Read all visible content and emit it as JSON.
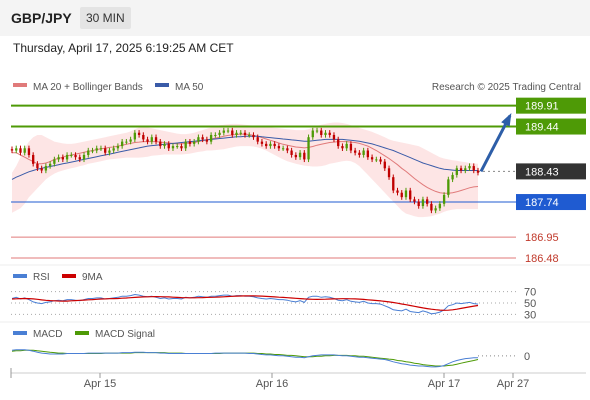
{
  "header": {
    "symbol": "GBP/JPY",
    "timeframe": "30 MIN",
    "datetime": "Thursday, April 17, 2025 6:19:25 AM CET"
  },
  "credit": "Research © 2025 Trading Central",
  "colors": {
    "resistance": "#4e9a06",
    "support": "#1f5bd1",
    "target": "#e07a7a",
    "current": "#333333",
    "arrow": "#2d5ea8",
    "ma20": "#e07a7a",
    "ma50": "#3a5ba8",
    "bollinger_fill": "#fde0e0",
    "up": "#4e9a06",
    "down": "#c00000",
    "rsi": "#4a7fd4",
    "rsi_ma": "#cc0000",
    "macd": "#4a7fd4",
    "macd_signal": "#4e9a06"
  },
  "chart_data": [
    {
      "type": "candlestick",
      "title": "GBP/JPY",
      "legend": [
        "MA 20 + Bollinger Bands",
        "MA 50"
      ],
      "x_ticks": [
        "Apr 15",
        "Apr 16",
        "Apr 17",
        "Apr 27"
      ],
      "ylim": [
        186.3,
        190.15
      ],
      "price_levels": [
        {
          "value": 189.91,
          "label": "189.91",
          "kind": "resistance"
        },
        {
          "value": 189.44,
          "label": "189.44",
          "kind": "resistance"
        },
        {
          "value": 188.43,
          "label": "188.43",
          "kind": "current"
        },
        {
          "value": 187.74,
          "label": "187.74",
          "kind": "support"
        },
        {
          "value": 186.95,
          "label": "186.95",
          "kind": "target"
        },
        {
          "value": 186.48,
          "label": "186.48",
          "kind": "target"
        }
      ],
      "projection": {
        "from": 188.43,
        "to": 189.91,
        "direction": "up"
      },
      "close": [
        188.9,
        188.95,
        188.85,
        188.95,
        188.8,
        188.6,
        188.5,
        188.45,
        188.55,
        188.6,
        188.7,
        188.75,
        188.7,
        188.8,
        188.8,
        188.75,
        188.7,
        188.8,
        188.9,
        188.9,
        188.95,
        188.95,
        188.85,
        188.9,
        188.95,
        189.0,
        189.1,
        189.1,
        189.15,
        189.3,
        189.25,
        189.15,
        189.1,
        189.2,
        189.1,
        189.0,
        189.05,
        188.95,
        189.0,
        189.0,
        188.95,
        189.1,
        189.05,
        189.1,
        189.2,
        189.15,
        189.1,
        189.25,
        189.25,
        189.3,
        189.35,
        189.35,
        189.25,
        189.3,
        189.3,
        189.25,
        189.25,
        189.2,
        189.1,
        189.05,
        189.0,
        189.05,
        189.0,
        188.95,
        188.95,
        188.9,
        188.8,
        188.75,
        188.85,
        188.7,
        189.2,
        189.35,
        189.35,
        189.25,
        189.3,
        189.25,
        189.15,
        189.0,
        188.95,
        189.05,
        188.9,
        188.85,
        188.8,
        188.9,
        188.75,
        188.7,
        188.7,
        188.65,
        188.5,
        188.3,
        188.0,
        187.95,
        187.85,
        188.0,
        187.8,
        187.75,
        187.65,
        187.8,
        187.7,
        187.55,
        187.6,
        187.7,
        187.9,
        188.25,
        188.35,
        188.5,
        188.45,
        188.5,
        188.55,
        188.45,
        188.4
      ],
      "ma20": [
        188.85,
        188.85,
        188.8,
        188.75,
        188.7,
        188.65,
        188.6,
        188.6,
        188.62,
        188.65,
        188.7,
        188.72,
        188.75,
        188.78,
        188.8,
        188.82,
        188.84,
        188.86,
        188.88,
        188.9,
        188.92,
        188.94,
        188.95,
        188.97,
        188.98,
        189.0,
        189.02,
        189.04,
        189.06,
        189.08,
        189.09,
        189.1,
        189.1,
        189.1,
        189.1,
        189.09,
        189.08,
        189.07,
        189.06,
        189.05,
        189.05,
        189.06,
        189.07,
        189.08,
        189.1,
        189.12,
        189.14,
        189.16,
        189.18,
        189.2,
        189.22,
        189.24,
        189.25,
        189.26,
        189.27,
        189.27,
        189.26,
        189.24,
        189.22,
        189.19,
        189.16,
        189.13,
        189.1,
        189.07,
        189.04,
        189.02,
        189.0,
        188.98,
        188.97,
        188.96,
        188.97,
        188.99,
        189.02,
        189.04,
        189.06,
        189.08,
        189.09,
        189.1,
        189.1,
        189.1,
        189.09,
        189.08,
        189.06,
        189.03,
        189.0,
        188.95,
        188.9,
        188.84,
        188.78,
        188.72,
        188.65,
        188.58,
        188.5,
        188.43,
        188.35,
        188.27,
        188.2,
        188.13,
        188.07,
        188.02,
        187.98,
        187.95,
        187.94,
        187.94,
        187.95,
        187.97,
        188.0,
        188.03,
        188.06,
        188.08,
        188.09
      ],
      "bb_upper": [
        188.4,
        188.55,
        188.75,
        188.95,
        189.1,
        189.2,
        189.25,
        189.25,
        189.2,
        189.15,
        189.1,
        189.08,
        189.06,
        189.05,
        189.05,
        189.06,
        189.08,
        189.1,
        189.12,
        189.14,
        189.16,
        189.18,
        189.2,
        189.22,
        189.24,
        189.26,
        189.28,
        189.3,
        189.33,
        189.38,
        189.42,
        189.43,
        189.42,
        189.4,
        189.38,
        189.36,
        189.34,
        189.32,
        189.3,
        189.28,
        189.27,
        189.27,
        189.28,
        189.3,
        189.33,
        189.36,
        189.39,
        189.42,
        189.45,
        189.47,
        189.48,
        189.49,
        189.5,
        189.5,
        189.49,
        189.48,
        189.47,
        189.46,
        189.45,
        189.44,
        189.43,
        189.42,
        189.41,
        189.4,
        189.39,
        189.38,
        189.37,
        189.36,
        189.36,
        189.36,
        189.38,
        189.42,
        189.46,
        189.48,
        189.5,
        189.52,
        189.53,
        189.53,
        189.52,
        189.5,
        189.47,
        189.44,
        189.41,
        189.38,
        189.35,
        189.32,
        189.28,
        189.24,
        189.2,
        189.15,
        189.12,
        189.1,
        189.08,
        189.06,
        189.04,
        189.02,
        189.0,
        188.95,
        188.9,
        188.85,
        188.8,
        188.75,
        188.72,
        188.7,
        188.68,
        188.67,
        188.65,
        188.64,
        188.62,
        188.61,
        188.6
      ],
      "bb_lower": [
        187.5,
        187.55,
        187.6,
        187.7,
        187.85,
        187.95,
        188.05,
        188.15,
        188.25,
        188.32,
        188.38,
        188.42,
        188.45,
        188.48,
        188.5,
        188.52,
        188.55,
        188.57,
        188.6,
        188.62,
        188.64,
        188.66,
        188.68,
        188.7,
        188.71,
        188.72,
        188.73,
        188.74,
        188.74,
        188.74,
        188.74,
        188.75,
        188.76,
        188.78,
        188.79,
        188.8,
        188.81,
        188.81,
        188.81,
        188.81,
        188.81,
        188.82,
        188.83,
        188.85,
        188.87,
        188.88,
        188.9,
        188.9,
        188.91,
        188.92,
        188.93,
        188.95,
        188.97,
        188.99,
        189.0,
        189.0,
        189.0,
        188.99,
        188.97,
        188.94,
        188.9,
        188.85,
        188.8,
        188.75,
        188.7,
        188.66,
        188.63,
        188.6,
        188.58,
        188.56,
        188.55,
        188.54,
        188.54,
        188.55,
        188.57,
        188.6,
        188.62,
        188.64,
        188.66,
        188.67,
        188.66,
        188.62,
        188.55,
        188.45,
        188.35,
        188.25,
        188.15,
        188.05,
        187.95,
        187.85,
        187.75,
        187.65,
        187.55,
        187.48,
        187.45,
        187.42,
        187.4,
        187.4,
        187.41,
        187.42,
        187.45,
        187.48,
        187.52,
        187.55,
        187.57,
        187.58,
        187.58,
        187.58,
        187.58,
        187.58,
        187.58
      ],
      "ma50": [
        188.25,
        188.3,
        188.34,
        188.38,
        188.42,
        188.45,
        188.48,
        188.5,
        188.52,
        188.54,
        188.56,
        188.58,
        188.6,
        188.62,
        188.64,
        188.66,
        188.68,
        188.7,
        188.72,
        188.74,
        188.76,
        188.78,
        188.8,
        188.82,
        188.84,
        188.86,
        188.88,
        188.9,
        188.92,
        188.94,
        188.96,
        188.98,
        189.0,
        189.01,
        189.02,
        189.03,
        189.04,
        189.05,
        189.06,
        189.07,
        189.08,
        189.09,
        189.1,
        189.11,
        189.12,
        189.13,
        189.14,
        189.15,
        189.16,
        189.17,
        189.18,
        189.19,
        189.2,
        189.21,
        189.21,
        189.22,
        189.22,
        189.22,
        189.22,
        189.21,
        189.2,
        189.19,
        189.18,
        189.17,
        189.16,
        189.15,
        189.14,
        189.13,
        189.12,
        189.11,
        189.11,
        189.12,
        189.13,
        189.14,
        189.15,
        189.15,
        189.15,
        189.15,
        189.15,
        189.14,
        189.13,
        189.12,
        189.11,
        189.09,
        189.07,
        189.05,
        189.02,
        188.99,
        188.96,
        188.93,
        188.9,
        188.86,
        188.82,
        188.78,
        188.74,
        188.7,
        188.66,
        188.62,
        188.59,
        188.56,
        188.53,
        188.5,
        188.48,
        188.47,
        188.46,
        188.45,
        188.45,
        188.45,
        188.45,
        188.45,
        188.45
      ]
    },
    {
      "type": "line",
      "title": "RSI",
      "legend": [
        "RSI",
        "9MA"
      ],
      "y_ticks": [
        "70",
        "50",
        "30"
      ],
      "ylim": [
        20,
        80
      ],
      "series": [
        {
          "name": "RSI",
          "values": [
            58,
            60,
            57,
            59,
            56,
            52,
            50,
            49,
            51,
            52,
            54,
            55,
            54,
            56,
            56,
            55,
            54,
            56,
            58,
            58,
            59,
            59,
            57,
            58,
            59,
            60,
            62,
            62,
            63,
            65,
            64,
            62,
            61,
            62,
            60,
            58,
            59,
            57,
            58,
            58,
            57,
            60,
            59,
            60,
            62,
            61,
            60,
            62,
            62,
            63,
            64,
            64,
            62,
            63,
            63,
            62,
            62,
            61,
            59,
            58,
            57,
            58,
            57,
            56,
            56,
            55,
            53,
            52,
            54,
            51,
            60,
            62,
            62,
            60,
            61,
            60,
            58,
            55,
            54,
            56,
            53,
            52,
            51,
            53,
            50,
            49,
            49,
            48,
            45,
            42,
            38,
            37,
            36,
            39,
            35,
            34,
            33,
            36,
            34,
            31,
            32,
            34,
            38,
            45,
            47,
            50,
            49,
            50,
            51,
            49,
            48
          ]
        },
        {
          "name": "9MA",
          "values": [
            57,
            57.5,
            57.8,
            58,
            57.8,
            57.2,
            56.5,
            55.5,
            54.8,
            54.2,
            53.8,
            53.5,
            53.3,
            53.4,
            53.8,
            54.3,
            54.8,
            55.2,
            55.6,
            56,
            56.5,
            57,
            57.3,
            57.6,
            57.8,
            58,
            58.4,
            58.8,
            59.3,
            59.9,
            60.4,
            60.8,
            61,
            61.2,
            61.3,
            61.2,
            61,
            60.7,
            60.3,
            59.9,
            59.5,
            59.3,
            59.2,
            59.2,
            59.4,
            59.6,
            59.8,
            60,
            60.3,
            60.6,
            61,
            61.4,
            61.8,
            62.1,
            62.4,
            62.6,
            62.7,
            62.6,
            62.4,
            62.1,
            61.7,
            61.3,
            60.8,
            60.3,
            59.8,
            59.3,
            58.8,
            58.3,
            57.8,
            57.2,
            56.8,
            56.5,
            56.4,
            56.5,
            56.7,
            57,
            57.3,
            57.5,
            57.6,
            57.6,
            57.5,
            57.2,
            56.8,
            56.3,
            55.7,
            55.1,
            54.4,
            53.7,
            52.9,
            51.9,
            50.8,
            49.6,
            48.3,
            47,
            45.6,
            44.2,
            42.8,
            41.4,
            40.2,
            39.1,
            38.2,
            37.5,
            37.1,
            37.3,
            38,
            39.1,
            40.4,
            41.8,
            43.2,
            44.5,
            45.6
          ]
        }
      ]
    },
    {
      "type": "line",
      "title": "MACD",
      "legend": [
        "MACD",
        "MACD Signal"
      ],
      "y_ticks": [
        "0"
      ],
      "ylim": [
        -0.35,
        0.3
      ],
      "series": [
        {
          "name": "MACD",
          "values": [
            0.12,
            0.13,
            0.13,
            0.13,
            0.12,
            0.1,
            0.08,
            0.06,
            0.05,
            0.04,
            0.04,
            0.04,
            0.04,
            0.05,
            0.05,
            0.05,
            0.05,
            0.05,
            0.06,
            0.06,
            0.06,
            0.06,
            0.06,
            0.06,
            0.06,
            0.06,
            0.07,
            0.07,
            0.07,
            0.08,
            0.08,
            0.08,
            0.07,
            0.07,
            0.07,
            0.06,
            0.06,
            0.05,
            0.05,
            0.05,
            0.05,
            0.05,
            0.05,
            0.05,
            0.05,
            0.05,
            0.05,
            0.05,
            0.06,
            0.06,
            0.06,
            0.06,
            0.06,
            0.06,
            0.06,
            0.06,
            0.05,
            0.05,
            0.04,
            0.03,
            0.02,
            0.02,
            0.01,
            0.0,
            0.0,
            -0.01,
            -0.02,
            -0.03,
            -0.03,
            -0.04,
            -0.02,
            0.0,
            0.01,
            0.02,
            0.02,
            0.02,
            0.02,
            0.01,
            0.0,
            0.0,
            -0.01,
            -0.02,
            -0.03,
            -0.03,
            -0.04,
            -0.05,
            -0.06,
            -0.07,
            -0.08,
            -0.1,
            -0.13,
            -0.15,
            -0.17,
            -0.18,
            -0.2,
            -0.21,
            -0.22,
            -0.22,
            -0.23,
            -0.24,
            -0.24,
            -0.23,
            -0.21,
            -0.17,
            -0.13,
            -0.1,
            -0.08,
            -0.06,
            -0.05,
            -0.04,
            -0.04
          ]
        },
        {
          "name": "MACD Signal",
          "values": [
            0.1,
            0.11,
            0.11,
            0.12,
            0.12,
            0.12,
            0.11,
            0.1,
            0.09,
            0.08,
            0.07,
            0.06,
            0.06,
            0.05,
            0.05,
            0.05,
            0.05,
            0.05,
            0.05,
            0.05,
            0.05,
            0.05,
            0.06,
            0.06,
            0.06,
            0.06,
            0.06,
            0.06,
            0.06,
            0.07,
            0.07,
            0.07,
            0.07,
            0.07,
            0.07,
            0.07,
            0.07,
            0.06,
            0.06,
            0.06,
            0.06,
            0.05,
            0.05,
            0.05,
            0.05,
            0.05,
            0.05,
            0.05,
            0.05,
            0.05,
            0.06,
            0.06,
            0.06,
            0.06,
            0.06,
            0.06,
            0.06,
            0.06,
            0.05,
            0.05,
            0.04,
            0.04,
            0.03,
            0.03,
            0.02,
            0.01,
            0.01,
            0.0,
            -0.01,
            -0.02,
            -0.02,
            -0.02,
            -0.01,
            -0.01,
            0.0,
            0.0,
            0.01,
            0.01,
            0.01,
            0.01,
            0.0,
            0.0,
            -0.01,
            -0.01,
            -0.02,
            -0.03,
            -0.04,
            -0.05,
            -0.06,
            -0.07,
            -0.08,
            -0.1,
            -0.11,
            -0.13,
            -0.14,
            -0.16,
            -0.17,
            -0.19,
            -0.2,
            -0.21,
            -0.22,
            -0.22,
            -0.22,
            -0.21,
            -0.2,
            -0.18,
            -0.16,
            -0.14,
            -0.12,
            -0.1,
            -0.08
          ]
        }
      ]
    }
  ]
}
